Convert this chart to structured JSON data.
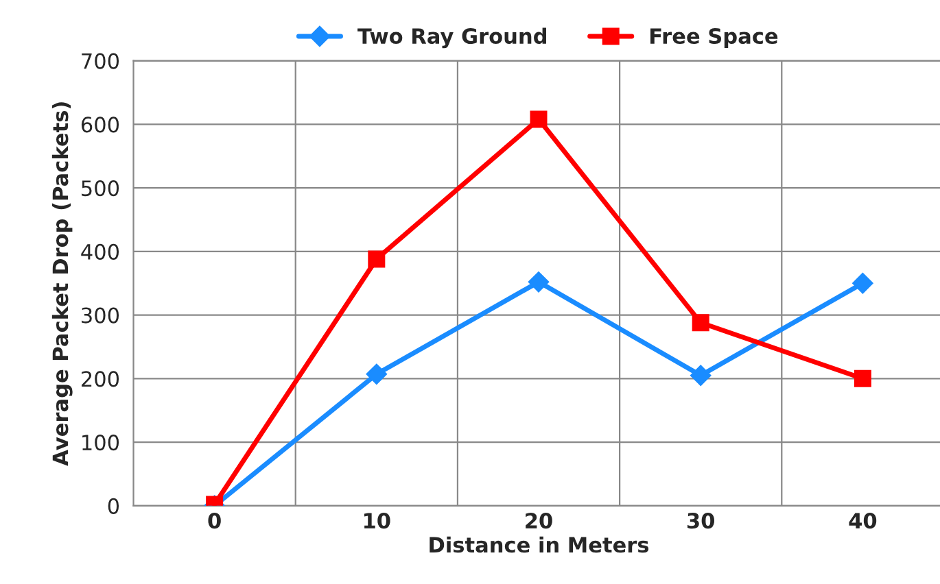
{
  "chart_data": {
    "type": "line",
    "xlabel": "Distance in Meters",
    "ylabel": "Average Packet Drop (Packets)",
    "categories": [
      "0",
      "10",
      "20",
      "30",
      "40"
    ],
    "series": [
      {
        "name": "Two Ray Ground",
        "color": "#1a8cff",
        "marker": "diamond",
        "values": [
          0,
          207,
          352,
          205,
          350
        ]
      },
      {
        "name": "Free Space",
        "color": "#ff0000",
        "marker": "square",
        "values": [
          2,
          388,
          608,
          288,
          200
        ]
      }
    ],
    "ylim": [
      0,
      700
    ],
    "yticks": [
      0,
      100,
      200,
      300,
      400,
      500,
      600,
      700
    ],
    "grid": true,
    "legend": "top",
    "line_style": "solid"
  }
}
